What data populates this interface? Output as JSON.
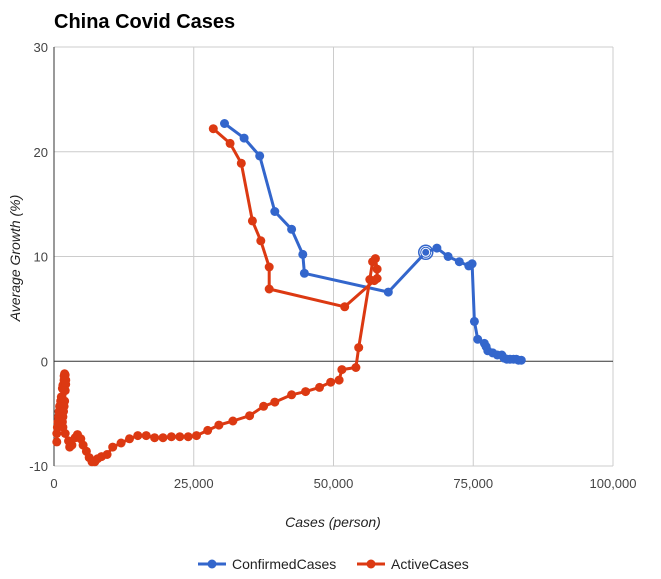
{
  "chart_data": {
    "type": "line",
    "title": "China Covid Cases",
    "xlabel": "Cases (person)",
    "ylabel": "Average Growth (%)",
    "xlim": [
      0,
      100000
    ],
    "ylim": [
      -10,
      30
    ],
    "xticks": [
      0,
      25000,
      50000,
      75000,
      100000
    ],
    "xtick_labels": [
      "0",
      "25,000",
      "50,000",
      "75,000",
      "100,000"
    ],
    "yticks": [
      -10,
      0,
      10,
      20,
      30
    ],
    "ytick_labels": [
      "-10",
      "0",
      "10",
      "20",
      "30"
    ],
    "grid": true,
    "legend": "bottom",
    "highlighted_point": {
      "series": "ConfirmedCases",
      "x": 66500,
      "y": 10.4
    },
    "series": [
      {
        "name": "ConfirmedCases",
        "color": "#3366cc",
        "points": [
          [
            30500,
            22.7
          ],
          [
            34000,
            21.3
          ],
          [
            36800,
            19.6
          ],
          [
            39500,
            14.3
          ],
          [
            42500,
            12.6
          ],
          [
            44500,
            10.2
          ],
          [
            44800,
            8.4
          ],
          [
            59800,
            6.6
          ],
          [
            66500,
            10.4
          ],
          [
            68500,
            10.8
          ],
          [
            70500,
            10.0
          ],
          [
            72500,
            9.5
          ],
          [
            74200,
            9.1
          ],
          [
            74800,
            9.3
          ],
          [
            75200,
            3.8
          ],
          [
            75800,
            2.1
          ],
          [
            77000,
            1.7
          ],
          [
            77300,
            1.4
          ],
          [
            77600,
            1.0
          ],
          [
            78500,
            0.8
          ],
          [
            79300,
            0.6
          ],
          [
            80100,
            0.6
          ],
          [
            80500,
            0.3
          ],
          [
            81000,
            0.2
          ],
          [
            81600,
            0.2
          ],
          [
            82200,
            0.2
          ],
          [
            82700,
            0.2
          ],
          [
            83100,
            0.1
          ],
          [
            83600,
            0.1
          ]
        ]
      },
      {
        "name": "ActiveCases",
        "color": "#dc3912",
        "points": [
          [
            500,
            -7.7
          ],
          [
            500,
            -6.9
          ],
          [
            600,
            -6.3
          ],
          [
            700,
            -5.8
          ],
          [
            800,
            -5.3
          ],
          [
            900,
            -4.8
          ],
          [
            1000,
            -4.3
          ],
          [
            1200,
            -3.8
          ],
          [
            1300,
            -3.4
          ],
          [
            1500,
            -2.6
          ],
          [
            1600,
            -2.3
          ],
          [
            1800,
            -1.8
          ],
          [
            1800,
            -1.4
          ],
          [
            1900,
            -1.2
          ],
          [
            2000,
            -1.3
          ],
          [
            2100,
            -1.8
          ],
          [
            2100,
            -2.2
          ],
          [
            2000,
            -2.8
          ],
          [
            1900,
            -3.8
          ],
          [
            1800,
            -4.3
          ],
          [
            1700,
            -4.8
          ],
          [
            1600,
            -5.3
          ],
          [
            1500,
            -5.8
          ],
          [
            1600,
            -6.3
          ],
          [
            2000,
            -6.9
          ],
          [
            2600,
            -7.6
          ],
          [
            2800,
            -8.2
          ],
          [
            3200,
            -8.0
          ],
          [
            3800,
            -7.3
          ],
          [
            4200,
            -7.0
          ],
          [
            4800,
            -7.4
          ],
          [
            5200,
            -8.0
          ],
          [
            5800,
            -8.6
          ],
          [
            6300,
            -9.2
          ],
          [
            6800,
            -9.6
          ],
          [
            7300,
            -9.6
          ],
          [
            7800,
            -9.3
          ],
          [
            8500,
            -9.1
          ],
          [
            9500,
            -8.9
          ],
          [
            10500,
            -8.2
          ],
          [
            12000,
            -7.8
          ],
          [
            13500,
            -7.4
          ],
          [
            15000,
            -7.1
          ],
          [
            16500,
            -7.1
          ],
          [
            18000,
            -7.3
          ],
          [
            19500,
            -7.3
          ],
          [
            21000,
            -7.2
          ],
          [
            22500,
            -7.2
          ],
          [
            24000,
            -7.2
          ],
          [
            25500,
            -7.1
          ],
          [
            27500,
            -6.6
          ],
          [
            29500,
            -6.1
          ],
          [
            32000,
            -5.7
          ],
          [
            35000,
            -5.2
          ],
          [
            37500,
            -4.3
          ],
          [
            39500,
            -3.9
          ],
          [
            42500,
            -3.2
          ],
          [
            45000,
            -2.9
          ],
          [
            47500,
            -2.5
          ],
          [
            49500,
            -2.0
          ],
          [
            51000,
            -1.8
          ],
          [
            51500,
            -0.8
          ],
          [
            54000,
            -0.6
          ],
          [
            54500,
            1.3
          ],
          [
            56500,
            7.8
          ],
          [
            57000,
            9.5
          ],
          [
            57500,
            9.8
          ],
          [
            57800,
            8.8
          ],
          [
            57800,
            7.9
          ],
          [
            57300,
            7.7
          ],
          [
            52000,
            5.2
          ],
          [
            38500,
            6.9
          ],
          [
            38500,
            9.0
          ],
          [
            37000,
            11.5
          ],
          [
            35500,
            13.4
          ],
          [
            33500,
            18.9
          ],
          [
            31500,
            20.8
          ],
          [
            28500,
            22.2
          ]
        ]
      }
    ]
  }
}
